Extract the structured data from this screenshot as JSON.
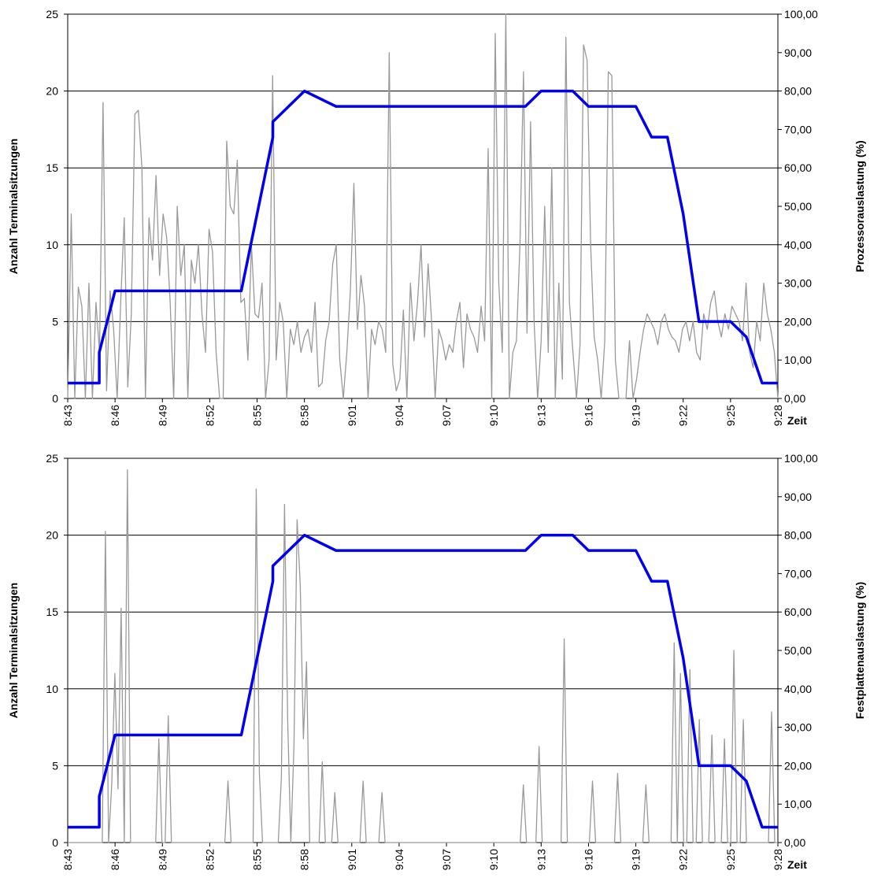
{
  "chart_data": [
    {
      "type": "line",
      "xlabel": "Zeit",
      "ylabel": "Anzahl Terminalsitzungen",
      "y2label": "Prozessorauslastung (%)",
      "ylim": [
        0,
        25
      ],
      "y2lim": [
        0,
        100
      ],
      "xlim": [
        "8:43",
        "9:28"
      ],
      "x_ticks": [
        "8:43",
        "8:46",
        "8:49",
        "8:52",
        "8:55",
        "8:58",
        "9:01",
        "9:04",
        "9:07",
        "9:10",
        "9:13",
        "9:16",
        "9:19",
        "9:22",
        "9:25",
        "9:28"
      ],
      "y_ticks": [
        "0",
        "5",
        "10",
        "15",
        "20",
        "25"
      ],
      "y2_ticks": [
        "0,00",
        "10,00",
        "20,00",
        "30,00",
        "40,00",
        "50,00",
        "60,00",
        "70,00",
        "80,00",
        "90,00",
        "100,00"
      ],
      "grid": "horizontal",
      "series": [
        {
          "axis": "left",
          "color": "#0000ee",
          "x": [
            "8:43",
            "8:44",
            "8:45",
            "8:45",
            "8:46",
            "8:47",
            "8:49",
            "8:52",
            "8:54",
            "8:55",
            "8:56",
            "8:56",
            "8:57",
            "8:58",
            "9:00",
            "9:04",
            "9:08",
            "9:12",
            "9:13",
            "9:15",
            "9:16",
            "9:19",
            "9:20",
            "9:21",
            "9:22",
            "9:23",
            "9:24",
            "9:25",
            "9:26",
            "9:27",
            "9:28"
          ],
          "values": [
            1,
            1,
            1,
            3,
            7,
            7,
            7,
            7,
            7,
            12,
            17,
            18,
            19,
            20,
            19,
            19,
            19,
            19,
            20,
            20,
            19,
            19,
            17,
            17,
            12,
            5,
            5,
            5,
            4,
            1,
            1
          ]
        },
        {
          "axis": "right",
          "color": "#999999",
          "x_range": [
            "8:43",
            "9:28"
          ],
          "values": [
            0,
            48,
            0,
            29,
            24,
            0,
            30,
            0,
            25,
            12,
            77,
            2,
            28,
            18,
            0,
            25,
            47,
            3,
            22,
            74,
            75,
            60,
            0,
            47,
            36,
            58,
            32,
            48,
            42,
            25,
            0,
            50,
            32,
            40,
            0,
            36,
            30,
            40,
            22,
            12,
            44,
            38,
            12,
            0,
            0,
            67,
            50,
            48,
            62,
            25,
            26,
            10,
            40,
            22,
            21,
            30,
            0,
            10,
            84,
            10,
            25,
            20,
            0,
            18,
            14,
            20,
            12,
            16,
            18,
            12,
            25,
            3,
            4,
            15,
            20,
            35,
            40,
            10,
            0,
            12,
            28,
            56,
            18,
            32,
            24,
            0,
            18,
            14,
            20,
            18,
            12,
            90,
            9,
            2,
            5,
            23,
            0,
            30,
            15,
            25,
            40,
            16,
            35,
            20,
            0,
            18,
            15,
            10,
            14,
            12,
            20,
            25,
            8,
            22,
            18,
            16,
            12,
            24,
            15,
            65,
            0,
            95,
            30,
            12,
            100,
            0,
            12,
            15,
            40,
            85,
            17,
            72,
            20,
            0,
            15,
            50,
            12,
            60,
            0,
            30,
            5,
            94,
            25,
            12,
            0,
            14,
            92,
            88,
            40,
            16,
            10,
            0,
            15,
            85,
            84,
            10,
            0,
            0,
            0,
            15,
            0,
            5,
            12,
            18,
            22,
            20,
            18,
            14,
            20,
            22,
            18,
            16,
            15,
            12,
            18,
            20,
            15,
            20,
            12,
            10,
            22,
            18,
            25,
            28,
            20,
            16,
            22,
            18,
            24,
            22,
            20,
            15,
            30,
            12,
            8,
            20,
            15,
            30,
            22,
            18,
            12,
            0
          ]
        }
      ]
    },
    {
      "type": "line",
      "xlabel": "Zeit",
      "ylabel": "Anzahl Terminalsitzungen",
      "y2label": "Festplattenauslastung (%)",
      "ylim": [
        0,
        25
      ],
      "y2lim": [
        0,
        100
      ],
      "xlim": [
        "8:43",
        "9:28"
      ],
      "x_ticks": [
        "8:43",
        "8:46",
        "8:49",
        "8:52",
        "8:55",
        "8:58",
        "9:01",
        "9:04",
        "9:07",
        "9:10",
        "9:13",
        "9:16",
        "9:19",
        "9:22",
        "9:25",
        "9:28"
      ],
      "y_ticks": [
        "0",
        "5",
        "10",
        "15",
        "20",
        "25"
      ],
      "y2_ticks": [
        "0,00",
        "10,00",
        "20,00",
        "30,00",
        "40,00",
        "50,00",
        "60,00",
        "70,00",
        "80,00",
        "90,00",
        "100,00"
      ],
      "grid": "horizontal",
      "series": [
        {
          "axis": "left",
          "color": "#0000ee",
          "x": [
            "8:43",
            "8:44",
            "8:45",
            "8:45",
            "8:46",
            "8:47",
            "8:49",
            "8:52",
            "8:54",
            "8:55",
            "8:56",
            "8:56",
            "8:57",
            "8:58",
            "9:00",
            "9:04",
            "9:08",
            "9:12",
            "9:13",
            "9:15",
            "9:16",
            "9:19",
            "9:20",
            "9:21",
            "9:22",
            "9:23",
            "9:24",
            "9:25",
            "9:26",
            "9:27",
            "9:28"
          ],
          "values": [
            1,
            1,
            1,
            3,
            7,
            7,
            7,
            7,
            7,
            12,
            17,
            18,
            19,
            20,
            19,
            19,
            19,
            19,
            20,
            20,
            19,
            19,
            17,
            17,
            12,
            5,
            5,
            5,
            4,
            1,
            1
          ]
        },
        {
          "axis": "right",
          "color": "#999999",
          "x_range": [
            "8:43",
            "9:28"
          ],
          "values": [
            0,
            0,
            0,
            0,
            0,
            0,
            0,
            0,
            0,
            0,
            0,
            0,
            81,
            0,
            15,
            44,
            14,
            61,
            0,
            97,
            0,
            0,
            0,
            0,
            0,
            0,
            0,
            0,
            0,
            27,
            0,
            0,
            33,
            0,
            0,
            0,
            0,
            0,
            0,
            0,
            0,
            0,
            0,
            0,
            0,
            0,
            0,
            0,
            0,
            0,
            0,
            16,
            0,
            0,
            0,
            0,
            0,
            0,
            0,
            0,
            92,
            18,
            0,
            0,
            0,
            0,
            0,
            0,
            17,
            88,
            32,
            0,
            25,
            84,
            67,
            27,
            47,
            0,
            0,
            0,
            0,
            21,
            0,
            0,
            0,
            13,
            0,
            0,
            0,
            0,
            0,
            0,
            0,
            0,
            16,
            0,
            0,
            0,
            0,
            0,
            13,
            0,
            0,
            0,
            0,
            0,
            0,
            0,
            0,
            0,
            0,
            0,
            0,
            0,
            0,
            0,
            0,
            0,
            0,
            0,
            0,
            0,
            0,
            0,
            0,
            0,
            0,
            0,
            0,
            0,
            0,
            0,
            0,
            0,
            0,
            0,
            0,
            0,
            0,
            0,
            0,
            0,
            0,
            0,
            0,
            15,
            0,
            0,
            0,
            0,
            25,
            0,
            0,
            0,
            0,
            0,
            0,
            0,
            53,
            0,
            0,
            0,
            0,
            0,
            0,
            0,
            0,
            16,
            0,
            0,
            0,
            0,
            0,
            0,
            0,
            18,
            0,
            0,
            0,
            0,
            0,
            0,
            0,
            0,
            15,
            0,
            0,
            0,
            0,
            0,
            0,
            0,
            0,
            52,
            0,
            44,
            0,
            0,
            45,
            0,
            0,
            32,
            0,
            0,
            0,
            28,
            0,
            0,
            0,
            27,
            0,
            0,
            50,
            0,
            0,
            32,
            0,
            0,
            0,
            0,
            0,
            0,
            0,
            0,
            34,
            0,
            0
          ]
        }
      ]
    }
  ]
}
